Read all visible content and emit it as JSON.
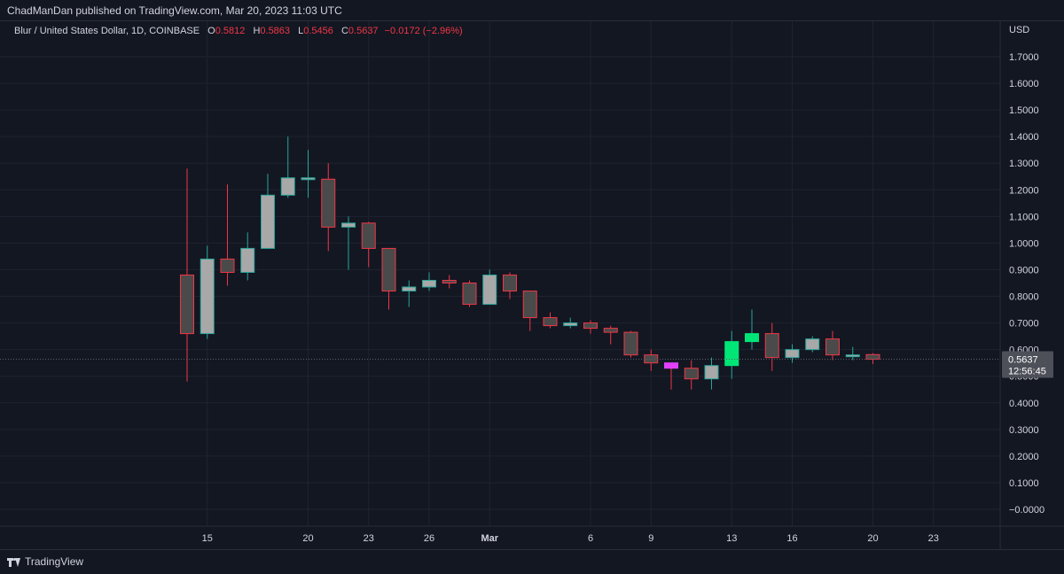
{
  "header": {
    "publisher": "ChadManDan published on TradingView.com, Mar 20, 2023 11:03 UTC"
  },
  "legend": {
    "symbol": "Blur / United States Dollar, 1D, COINBASE",
    "o_label": "O",
    "o_value": "0.5812",
    "h_label": "H",
    "h_value": "0.5863",
    "l_label": "L",
    "l_value": "0.5456",
    "c_label": "C",
    "c_value": "0.5637",
    "change": "−0.0172 (−2.96%)"
  },
  "price_axis": {
    "currency": "USD",
    "last_price": "0.5637",
    "countdown": "12:56:45"
  },
  "footer": {
    "brand": "TradingView"
  },
  "colors": {
    "background": "#131722",
    "grid": "#1f2330",
    "up_body": "#a8a8a8",
    "up_border": "#26a69a",
    "down_body": "#4a4a4a",
    "down_border": "#f23645",
    "highlight_green": "#00e676",
    "highlight_magenta": "#e040fb",
    "text": "#d1d4dc"
  },
  "chart_data": {
    "type": "candlestick",
    "ylim": [
      -0.03,
      1.78
    ],
    "y_ticks": [
      "1.7000",
      "1.6000",
      "1.5000",
      "1.4000",
      "1.3000",
      "1.2000",
      "1.1000",
      "1.0000",
      "0.9000",
      "0.8000",
      "0.7000",
      "0.6000",
      "0.5000",
      "0.4000",
      "0.3000",
      "0.2000",
      "0.1000",
      "−0.0000"
    ],
    "y_tick_values": [
      1.7,
      1.6,
      1.5,
      1.4,
      1.3,
      1.2,
      1.1,
      1.0,
      0.9,
      0.8,
      0.7,
      0.6,
      0.5,
      0.4,
      0.3,
      0.2,
      0.1,
      0.0
    ],
    "x_ticks": [
      {
        "label": "15",
        "index": 1
      },
      {
        "label": "20",
        "index": 6
      },
      {
        "label": "23",
        "index": 9
      },
      {
        "label": "26",
        "index": 12
      },
      {
        "label": "Mar",
        "index": 15
      },
      {
        "label": "6",
        "index": 20
      },
      {
        "label": "9",
        "index": 23
      },
      {
        "label": "13",
        "index": 27
      },
      {
        "label": "16",
        "index": 30
      },
      {
        "label": "20",
        "index": 34
      },
      {
        "label": "23",
        "index": 37
      }
    ],
    "candles": [
      {
        "date": "Feb 14",
        "o": 0.66,
        "h": 1.28,
        "l": 0.48,
        "c": 0.88,
        "color": "down"
      },
      {
        "date": "Feb 15",
        "o": 0.66,
        "h": 0.99,
        "l": 0.64,
        "c": 0.94,
        "color": "up"
      },
      {
        "date": "Feb 16",
        "o": 0.94,
        "h": 1.22,
        "l": 0.84,
        "c": 0.89,
        "color": "down"
      },
      {
        "date": "Feb 17",
        "o": 0.89,
        "h": 1.04,
        "l": 0.86,
        "c": 0.98,
        "color": "up"
      },
      {
        "date": "Feb 18",
        "o": 0.98,
        "h": 1.26,
        "l": 0.98,
        "c": 1.18,
        "color": "up"
      },
      {
        "date": "Feb 19",
        "o": 1.18,
        "h": 1.4,
        "l": 1.17,
        "c": 1.245,
        "color": "up"
      },
      {
        "date": "Feb 20",
        "o": 1.245,
        "h": 1.35,
        "l": 1.17,
        "c": 1.24,
        "color": "up"
      },
      {
        "date": "Feb 21",
        "o": 1.24,
        "h": 1.3,
        "l": 0.97,
        "c": 1.06,
        "color": "down"
      },
      {
        "date": "Feb 22",
        "o": 1.06,
        "h": 1.1,
        "l": 0.9,
        "c": 1.075,
        "color": "up"
      },
      {
        "date": "Feb 23",
        "o": 1.075,
        "h": 1.08,
        "l": 0.91,
        "c": 0.98,
        "color": "down"
      },
      {
        "date": "Feb 24",
        "o": 0.98,
        "h": 0.98,
        "l": 0.75,
        "c": 0.82,
        "color": "down"
      },
      {
        "date": "Feb 25",
        "o": 0.82,
        "h": 0.86,
        "l": 0.76,
        "c": 0.835,
        "color": "up"
      },
      {
        "date": "Feb 26",
        "o": 0.835,
        "h": 0.89,
        "l": 0.82,
        "c": 0.86,
        "color": "up"
      },
      {
        "date": "Feb 27",
        "o": 0.86,
        "h": 0.88,
        "l": 0.83,
        "c": 0.85,
        "color": "down"
      },
      {
        "date": "Feb 28",
        "o": 0.85,
        "h": 0.86,
        "l": 0.76,
        "c": 0.77,
        "color": "down"
      },
      {
        "date": "Mar 1",
        "o": 0.77,
        "h": 0.9,
        "l": 0.77,
        "c": 0.88,
        "color": "up"
      },
      {
        "date": "Mar 2",
        "o": 0.88,
        "h": 0.89,
        "l": 0.79,
        "c": 0.82,
        "color": "down"
      },
      {
        "date": "Mar 3",
        "o": 0.82,
        "h": 0.82,
        "l": 0.67,
        "c": 0.72,
        "color": "down"
      },
      {
        "date": "Mar 4",
        "o": 0.72,
        "h": 0.74,
        "l": 0.68,
        "c": 0.69,
        "color": "down"
      },
      {
        "date": "Mar 5",
        "o": 0.69,
        "h": 0.72,
        "l": 0.68,
        "c": 0.7,
        "color": "up"
      },
      {
        "date": "Mar 6",
        "o": 0.7,
        "h": 0.71,
        "l": 0.66,
        "c": 0.68,
        "color": "down"
      },
      {
        "date": "Mar 7",
        "o": 0.68,
        "h": 0.69,
        "l": 0.62,
        "c": 0.665,
        "color": "down"
      },
      {
        "date": "Mar 8",
        "o": 0.665,
        "h": 0.67,
        "l": 0.57,
        "c": 0.58,
        "color": "down"
      },
      {
        "date": "Mar 9",
        "o": 0.58,
        "h": 0.6,
        "l": 0.52,
        "c": 0.55,
        "color": "down"
      },
      {
        "date": "Mar 10",
        "o": 0.55,
        "h": 0.55,
        "l": 0.45,
        "c": 0.53,
        "color": "magenta"
      },
      {
        "date": "Mar 11",
        "o": 0.53,
        "h": 0.56,
        "l": 0.45,
        "c": 0.49,
        "color": "down"
      },
      {
        "date": "Mar 12",
        "o": 0.49,
        "h": 0.57,
        "l": 0.45,
        "c": 0.54,
        "color": "up"
      },
      {
        "date": "Mar 13",
        "o": 0.54,
        "h": 0.67,
        "l": 0.49,
        "c": 0.63,
        "color": "green"
      },
      {
        "date": "Mar 14",
        "o": 0.63,
        "h": 0.75,
        "l": 0.6,
        "c": 0.66,
        "color": "green"
      },
      {
        "date": "Mar 15",
        "o": 0.66,
        "h": 0.7,
        "l": 0.52,
        "c": 0.57,
        "color": "down"
      },
      {
        "date": "Mar 16",
        "o": 0.57,
        "h": 0.62,
        "l": 0.55,
        "c": 0.6,
        "color": "up"
      },
      {
        "date": "Mar 17",
        "o": 0.6,
        "h": 0.65,
        "l": 0.59,
        "c": 0.64,
        "color": "up"
      },
      {
        "date": "Mar 18",
        "o": 0.64,
        "h": 0.67,
        "l": 0.56,
        "c": 0.58,
        "color": "down"
      },
      {
        "date": "Mar 19",
        "o": 0.58,
        "h": 0.61,
        "l": 0.56,
        "c": 0.58,
        "color": "up"
      },
      {
        "date": "Mar 20",
        "o": 0.5812,
        "h": 0.5863,
        "l": 0.5456,
        "c": 0.5637,
        "color": "down"
      }
    ]
  }
}
